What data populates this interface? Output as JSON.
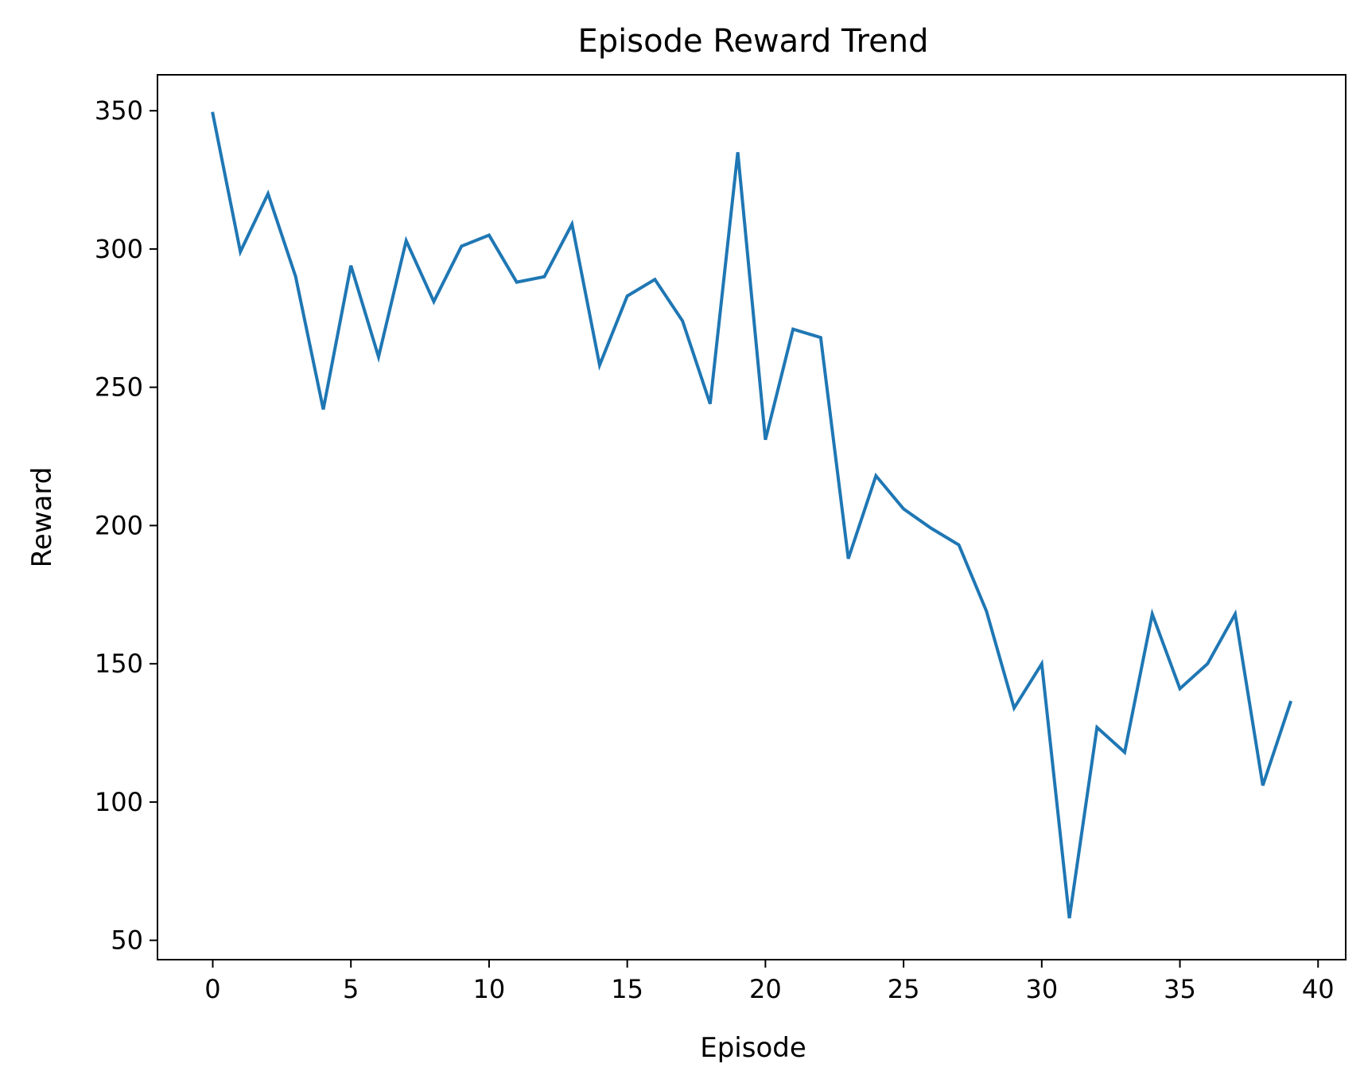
{
  "chart_data": {
    "type": "line",
    "title": "Episode Reward Trend",
    "xlabel": "Episode",
    "ylabel": "Reward",
    "xlim": [
      -2,
      41
    ],
    "ylim": [
      43,
      363
    ],
    "xticks": [
      0,
      5,
      10,
      15,
      20,
      25,
      30,
      35,
      40
    ],
    "yticks": [
      50,
      100,
      150,
      200,
      250,
      300,
      350
    ],
    "grid": false,
    "series": [
      {
        "color": "#1f77b4",
        "x": [
          0,
          1,
          2,
          3,
          4,
          5,
          6,
          7,
          8,
          9,
          10,
          11,
          12,
          13,
          14,
          15,
          16,
          17,
          18,
          19,
          20,
          21,
          22,
          23,
          24,
          25,
          26,
          27,
          28,
          29,
          30,
          31,
          32,
          33,
          34,
          35,
          36,
          37,
          38,
          39
        ],
        "values": [
          349,
          299,
          320,
          290,
          242,
          294,
          261,
          303,
          281,
          301,
          305,
          288,
          290,
          309,
          258,
          283,
          289,
          274,
          244,
          335,
          231,
          271,
          268,
          188,
          218,
          206,
          199,
          193,
          169,
          134,
          150,
          58,
          127,
          118,
          168,
          141,
          150,
          168,
          106,
          136
        ]
      }
    ]
  }
}
